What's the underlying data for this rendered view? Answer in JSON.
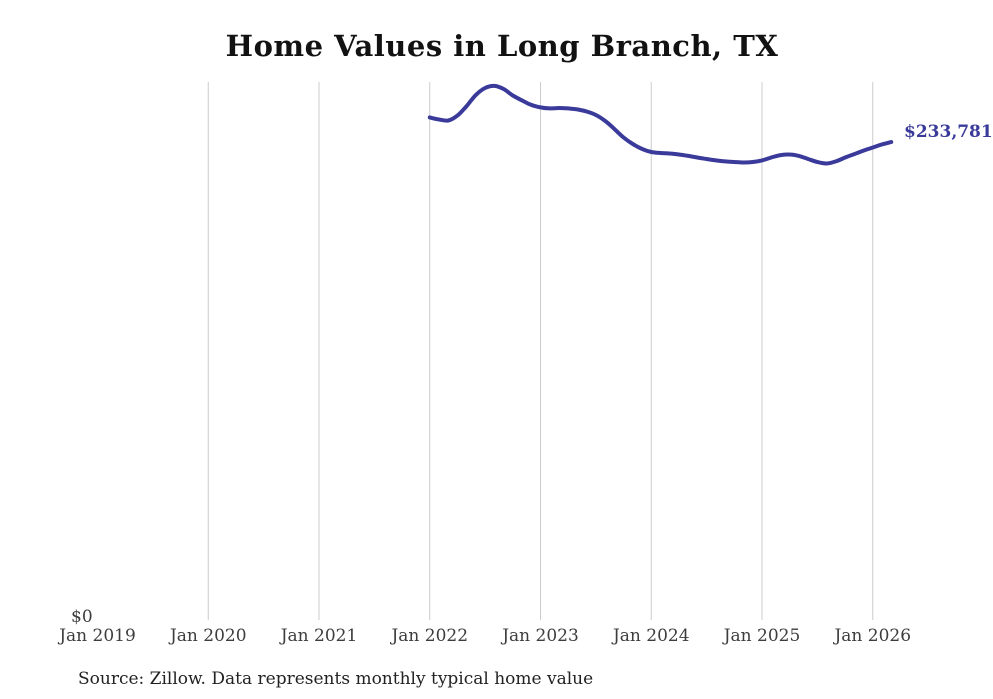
{
  "chart": {
    "title": "Home Values in Long Branch, TX",
    "source": "Source: Zillow. Data represents monthly typical home value"
  },
  "chart_data": {
    "type": "line",
    "title": "Home Values in Long Branch, TX",
    "xlabel": "",
    "ylabel": "",
    "x_tick_labels": [
      "Jan 2019",
      "Jan 2020",
      "Jan 2021",
      "Jan 2022",
      "Jan 2023",
      "Jan 2024",
      "Jan 2025",
      "Jan 2026"
    ],
    "y_zero_label": "$0",
    "end_label": "$233,781",
    "latest_value": 233781,
    "ylim": [
      0,
      263000
    ],
    "grid": "vertical-only",
    "legend": "none",
    "line_color": "#3a3a9b",
    "grid_color": "#cccccc",
    "axis_label_color": "#3d3d3d",
    "series": [
      {
        "name": "Monthly typical home value",
        "months": [
          "2022-01",
          "2022-02",
          "2022-03",
          "2022-04",
          "2022-05",
          "2022-06",
          "2022-07",
          "2022-08",
          "2022-09",
          "2022-10",
          "2022-11",
          "2022-12",
          "2023-01",
          "2023-02",
          "2023-03",
          "2023-04",
          "2023-05",
          "2023-06",
          "2023-07",
          "2023-08",
          "2023-09",
          "2023-10",
          "2023-11",
          "2023-12",
          "2024-01",
          "2024-02",
          "2024-03",
          "2024-04",
          "2024-05",
          "2024-06",
          "2024-07",
          "2024-08",
          "2024-09",
          "2024-10",
          "2024-11",
          "2024-12",
          "2025-01",
          "2025-02",
          "2025-03",
          "2025-04",
          "2025-05",
          "2025-06",
          "2025-07",
          "2025-08",
          "2025-09",
          "2025-10",
          "2025-11",
          "2025-12",
          "2026-01",
          "2026-02",
          "2026-03"
        ],
        "values": [
          245800,
          244800,
          244300,
          246700,
          251400,
          256800,
          260200,
          261200,
          259700,
          256500,
          254100,
          251900,
          250700,
          250200,
          250400,
          250200,
          249700,
          248700,
          247000,
          244100,
          240200,
          236000,
          232800,
          230400,
          228900,
          228400,
          228200,
          227700,
          227000,
          226200,
          225500,
          224800,
          224300,
          224000,
          223800,
          224000,
          224800,
          226200,
          227400,
          227700,
          227000,
          225500,
          224000,
          223300,
          224300,
          226200,
          227900,
          229600,
          231100,
          232600,
          233781
        ]
      }
    ]
  }
}
